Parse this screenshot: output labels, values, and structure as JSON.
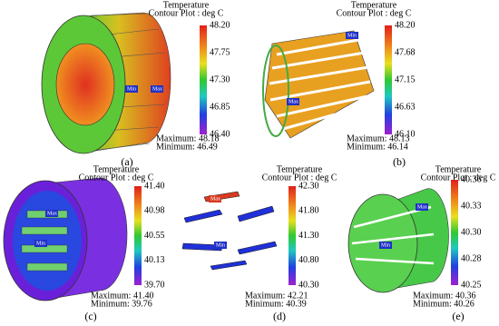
{
  "panels": [
    {
      "label": "(a)",
      "title": "Temperature",
      "subtitle": "Contour Plot : deg C",
      "scale": [
        "48.20",
        "47.75",
        "47.30",
        "46.85",
        "46.40"
      ],
      "maximum": "Maximum: 48.18",
      "minimum": "Minimum: 46.49",
      "markers": [
        "Max",
        "Min"
      ]
    },
    {
      "label": "(b)",
      "title": "Temperature",
      "subtitle": "Contour Plot : deg C",
      "scale": [
        "48.20",
        "47.68",
        "47.15",
        "46.63",
        "46.10"
      ],
      "maximum": "Maximum: 48.13",
      "minimum": "Minimum: 46.14",
      "markers": [
        "Min",
        "Max"
      ]
    },
    {
      "label": "(c)",
      "title": "Temperature",
      "subtitle": "Contour Plot : deg C",
      "scale": [
        "41.40",
        "40.98",
        "40.55",
        "40.13",
        "39.70"
      ],
      "maximum": "Maximum: 41.40",
      "minimum": "Minimum: 39.76",
      "markers": [
        "Max",
        "Min"
      ]
    },
    {
      "label": "(d)",
      "title": "Temperature",
      "subtitle": "Contour Plot : deg C",
      "scale": [
        "42.30",
        "41.80",
        "41.30",
        "40.80",
        "40.30"
      ],
      "maximum": "Maximum: 42.21",
      "minimum": "Minimum: 40.39",
      "markers": [
        "Max",
        "Min"
      ]
    },
    {
      "label": "(e)",
      "title": "Temperature",
      "subtitle": "Contour Plot : deg C",
      "scale": [
        "40.36",
        "40.33",
        "40.30",
        "40.28",
        "40.25"
      ],
      "maximum": "Maximum: 40.36",
      "minimum": "Minimum: 40.26",
      "markers": [
        "Max",
        "Min"
      ]
    }
  ]
}
